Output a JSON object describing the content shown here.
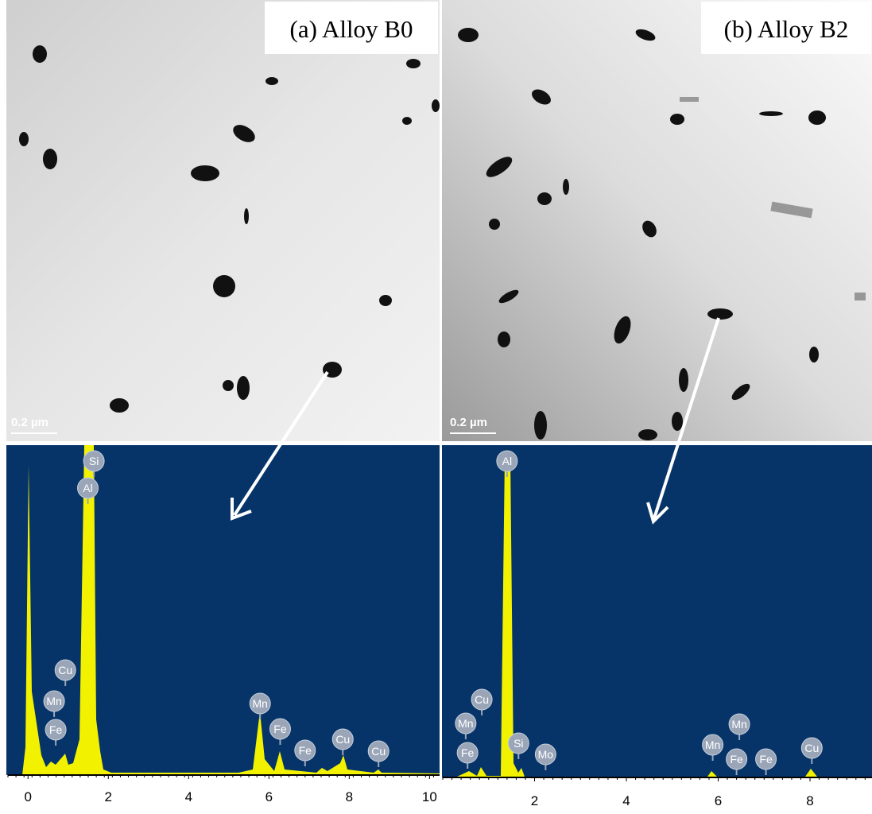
{
  "panels": [
    {
      "label": "(a) Alloy B0",
      "scale_bar": "0.2 µm",
      "spectrum": {
        "xlim": [
          -0.5,
          10.25
        ],
        "xticks": [
          0,
          2,
          4,
          6,
          8,
          10
        ],
        "peaks": [
          {
            "label": "Si",
            "x": 1.64
          },
          {
            "label": "Al",
            "x": 1.49
          },
          {
            "label": "Cu",
            "x": 0.93
          },
          {
            "label": "Mn",
            "x": 0.65
          },
          {
            "label": "Fe",
            "x": 0.69
          },
          {
            "label": "Mn",
            "x": 5.78
          },
          {
            "label": "Fe",
            "x": 6.28
          },
          {
            "label": "Fe",
            "x": 6.9
          },
          {
            "label": "Cu",
            "x": 7.84
          },
          {
            "label": "Cu",
            "x": 8.73
          }
        ]
      }
    },
    {
      "label": "(b) Alloy B2",
      "scale_bar": "0.2 µm",
      "spectrum": {
        "xlim": [
          0,
          9.35
        ],
        "xticks": [
          2,
          4,
          6,
          8
        ],
        "peaks": [
          {
            "label": "Al",
            "x": 1.4
          },
          {
            "label": "Cu",
            "x": 0.85
          },
          {
            "label": "Mn",
            "x": 0.5
          },
          {
            "label": "Fe",
            "x": 0.54
          },
          {
            "label": "Si",
            "x": 1.65
          },
          {
            "label": "Mo",
            "x": 2.24
          },
          {
            "label": "Mn",
            "x": 5.88
          },
          {
            "label": "Mn",
            "x": 6.46
          },
          {
            "label": "Fe",
            "x": 6.4
          },
          {
            "label": "Fe",
            "x": 7.04
          },
          {
            "label": "Cu",
            "x": 8.04
          }
        ]
      }
    }
  ]
}
